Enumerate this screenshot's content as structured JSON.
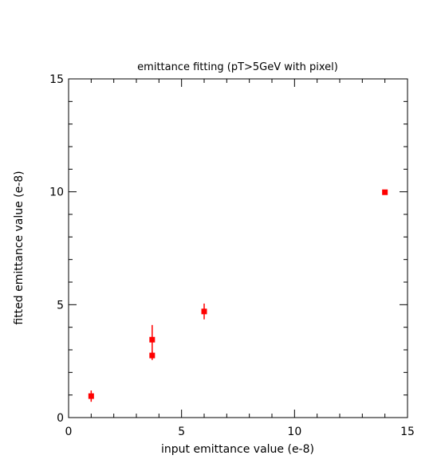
{
  "chart_data": {
    "type": "scatter",
    "title": "emittance fitting (pT>5GeV with pixel)",
    "xlabel": "input emittance value (e-8)",
    "ylabel": "fitted emittance value (e-8)",
    "xlim": [
      0,
      15
    ],
    "ylim": [
      0,
      15
    ],
    "x_ticks": [
      "0",
      "5",
      "10",
      "15"
    ],
    "y_ticks": [
      "0",
      "5",
      "10",
      "15"
    ],
    "grid": false,
    "marker_color": "#ff0000",
    "points": [
      {
        "x": 1.0,
        "y": 0.95,
        "err": 0.25
      },
      {
        "x": 3.7,
        "y": 2.75,
        "err": 0.2
      },
      {
        "x": 3.7,
        "y": 3.45,
        "err": 0.65
      },
      {
        "x": 6.0,
        "y": 4.7,
        "err": 0.35
      },
      {
        "x": 14.0,
        "y": 9.98,
        "err": 0.1
      }
    ]
  }
}
